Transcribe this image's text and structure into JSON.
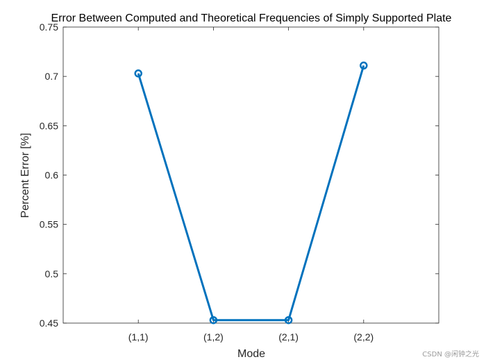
{
  "chart_data": {
    "type": "line",
    "title": "Error Between Computed and Theoretical Frequencies of Simply Supported Plate",
    "xlabel": "Mode",
    "ylabel": "Percent Error [%]",
    "categories": [
      "(1,1)",
      "(1,2)",
      "(2,1)",
      "(2,2)"
    ],
    "values": [
      0.703,
      0.453,
      0.453,
      0.711
    ],
    "ylim": [
      0.45,
      0.75
    ],
    "yticks": [
      0.45,
      0.5,
      0.55,
      0.6,
      0.65,
      0.7,
      0.75
    ],
    "ytick_labels": [
      "0.45",
      "0.5",
      "0.55",
      "0.6",
      "0.65",
      "0.7",
      "0.75"
    ],
    "grid": false,
    "marker": "circle",
    "line_color": "#0072BD"
  },
  "watermark": "CSDN @闲钟之光"
}
